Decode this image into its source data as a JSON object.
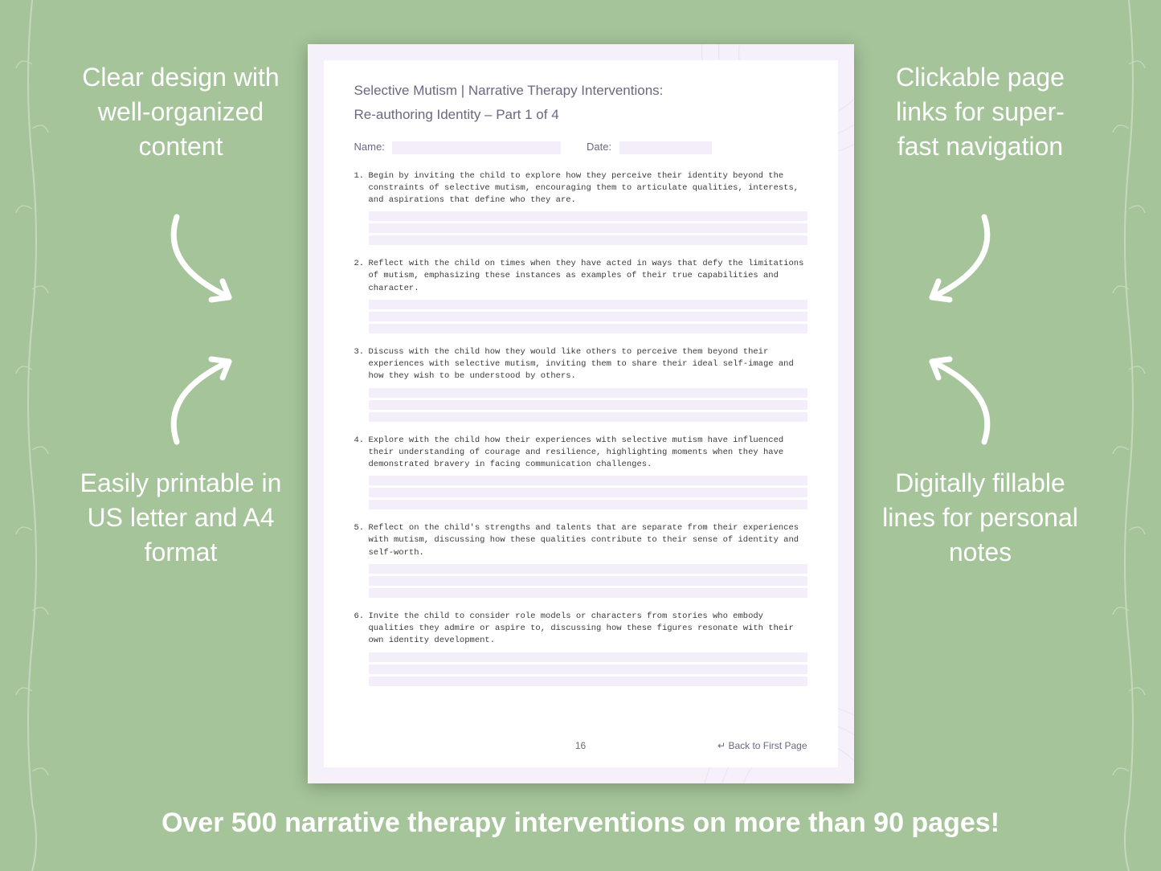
{
  "background_color": "#a5c49a",
  "text_color": "#ffffff",
  "callouts": {
    "top_left": "Clear design with well-organized content",
    "top_right": "Clickable page links for super-fast navigation",
    "bottom_left": "Easily printable in US letter and A4 format",
    "bottom_right": "Digitally fillable lines for personal notes"
  },
  "arrow_stroke": "#ffffff",
  "footer": "Over 500 narrative therapy interventions on more than 90 pages!",
  "document": {
    "page_bg": "#f5f0fa",
    "inner_bg": "#ffffff",
    "fill_line_color": "#f3eef9",
    "heading_color": "#6b6880",
    "body_font": "Courier New",
    "title": "Selective Mutism | Narrative Therapy Interventions:",
    "subtitle": "Re-authoring Identity – Part 1 of 4",
    "name_label": "Name:",
    "date_label": "Date:",
    "items": [
      "Begin by inviting the child to explore how they perceive their identity beyond the constraints of selective mutism, encouraging them to articulate qualities, interests, and aspirations that define who they are.",
      "Reflect with the child on times when they have acted in ways that defy the limitations of mutism, emphasizing these instances as examples of their true capabilities and character.",
      "Discuss with the child how they would like others to perceive them beyond their experiences with selective mutism, inviting them to share their ideal self-image and how they wish to be understood by others.",
      "Explore with the child how their experiences with selective mutism have influenced their understanding of courage and resilience, highlighting moments when they have demonstrated bravery in facing communication challenges.",
      "Reflect on the child's strengths and talents that are separate from their experiences with mutism, discussing how these qualities contribute to their sense of identity and self-worth.",
      "Invite the child to consider role models or characters from stories who embody qualities they admire or aspire to, discussing how these figures resonate with their own identity development."
    ],
    "page_number": "16",
    "back_link": "↵ Back to First Page"
  }
}
